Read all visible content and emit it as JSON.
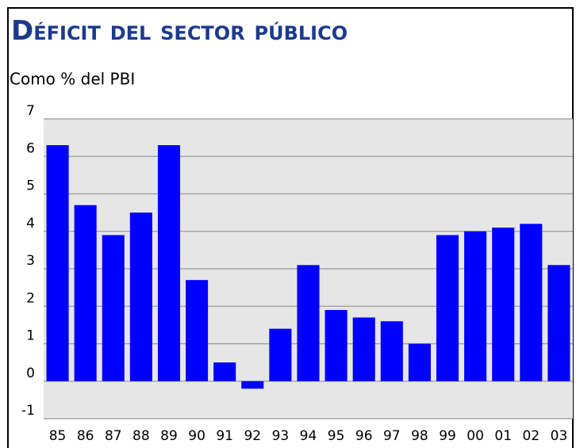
{
  "chart_data": {
    "type": "bar",
    "title": "Déficit del sector público",
    "subtitle": "Como % del PBI",
    "categories": [
      "85",
      "86",
      "87",
      "88",
      "89",
      "90",
      "91",
      "92",
      "93",
      "94",
      "95",
      "96",
      "97",
      "98",
      "99",
      "00",
      "01",
      "02",
      "03"
    ],
    "values": [
      6.3,
      4.7,
      3.9,
      4.5,
      6.3,
      2.7,
      0.5,
      -0.2,
      1.4,
      3.1,
      1.9,
      1.7,
      1.6,
      1.0,
      3.9,
      4.0,
      4.1,
      4.2,
      3.1
    ],
    "color": "#0000ff",
    "ylim": [
      -1,
      7
    ],
    "yticks": [
      -1,
      0,
      1,
      2,
      3,
      4,
      5,
      6,
      7
    ],
    "grid": true
  }
}
